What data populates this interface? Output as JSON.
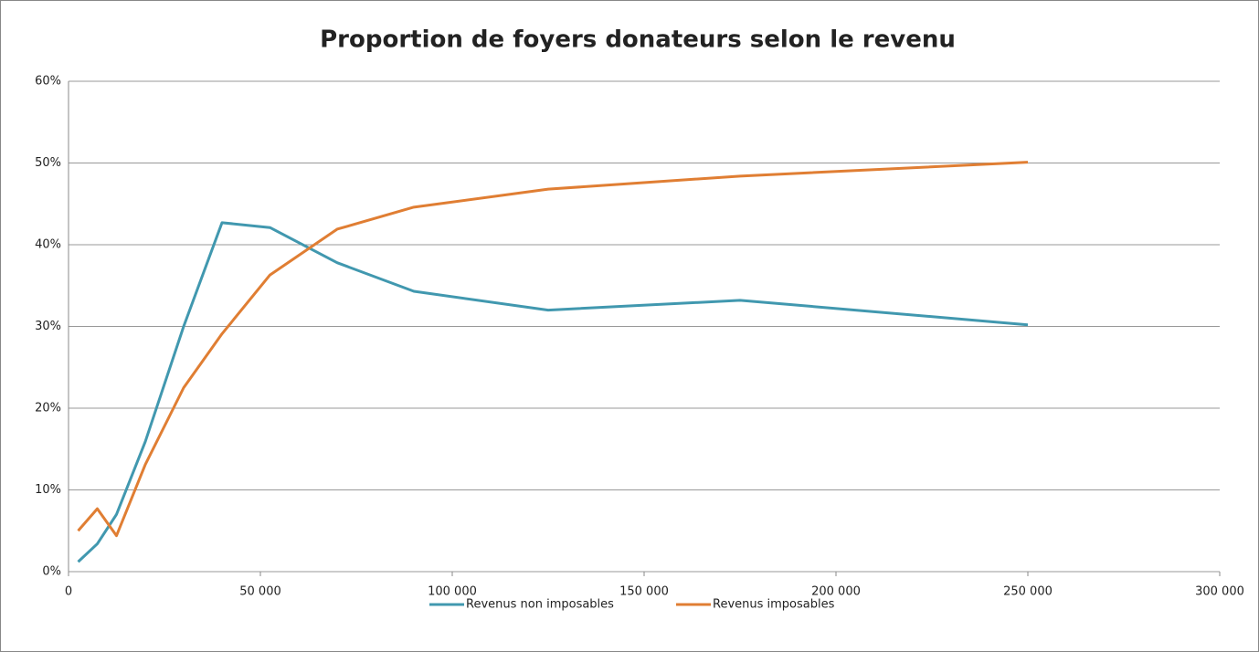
{
  "chart_data": {
    "type": "line",
    "title": "Proportion de foyers donateurs selon le revenu",
    "x": [
      2500,
      7500,
      12500,
      20000,
      30000,
      40000,
      52500,
      70000,
      90000,
      125000,
      175000,
      250000
    ],
    "series": [
      {
        "name": "Revenus non imposables",
        "color": "#4198af",
        "values": [
          1.2,
          3.4,
          7.0,
          15.9,
          30.0,
          42.7,
          42.1,
          37.8,
          34.3,
          32.0,
          33.2,
          30.2
        ]
      },
      {
        "name": "Revenus imposables",
        "color": "#e07e33",
        "values": [
          5.0,
          7.7,
          4.4,
          13.1,
          22.5,
          29.1,
          36.3,
          41.9,
          44.6,
          46.8,
          48.4,
          50.1
        ]
      }
    ],
    "xlim": [
      0,
      300000
    ],
    "xticks": [
      0,
      {
        "value": 50000,
        "label": "50 000"
      },
      {
        "value": 100000,
        "label": "100 000"
      },
      {
        "value": 150000,
        "label": "150 000"
      },
      {
        "value": 200000,
        "label": "200 000"
      },
      {
        "value": 250000,
        "label": "250 000"
      },
      {
        "value": 300000,
        "label": "300 000"
      }
    ],
    "ylim": [
      0,
      60
    ],
    "yticks": [
      {
        "value": 0,
        "label": "0%"
      },
      {
        "value": 10,
        "label": "10%"
      },
      {
        "value": 20,
        "label": "20%"
      },
      {
        "value": 30,
        "label": "30%"
      },
      {
        "value": 40,
        "label": "40%"
      },
      {
        "value": 50,
        "label": "50%"
      },
      {
        "value": 60,
        "label": "60%"
      }
    ],
    "grid": true,
    "legend": "bottom"
  }
}
